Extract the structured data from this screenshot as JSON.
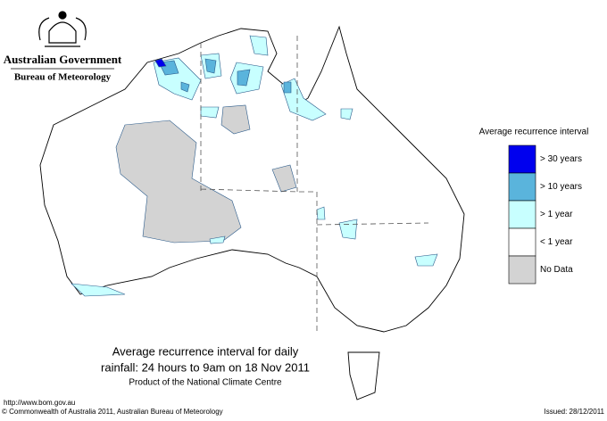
{
  "header": {
    "government": "Australian Government",
    "agency": "Bureau of Meteorology"
  },
  "map": {
    "title_line1": "Average recurrence interval for daily",
    "title_line2": "rainfall: 24 hours to 9am on 18 Nov 2011",
    "subtitle": "Product of the National Climate Centre"
  },
  "legend": {
    "title": "Average recurrence interval",
    "items": [
      {
        "label": "> 30 years",
        "color": "#0000ee"
      },
      {
        "label": "> 10 years",
        "color": "#5ab4dc"
      },
      {
        "label": "> 1 year",
        "color": "#c8ffff"
      },
      {
        "label": "< 1 year",
        "color": "#ffffff"
      },
      {
        "label": "No Data",
        "color": "#d3d3d3"
      }
    ]
  },
  "footer": {
    "url": "http://www.bom.gov.au",
    "copyright": "© Commonwealth of Australia 2011, Australian Bureau of Meteorology",
    "issued": "Issued: 28/12/2011"
  }
}
